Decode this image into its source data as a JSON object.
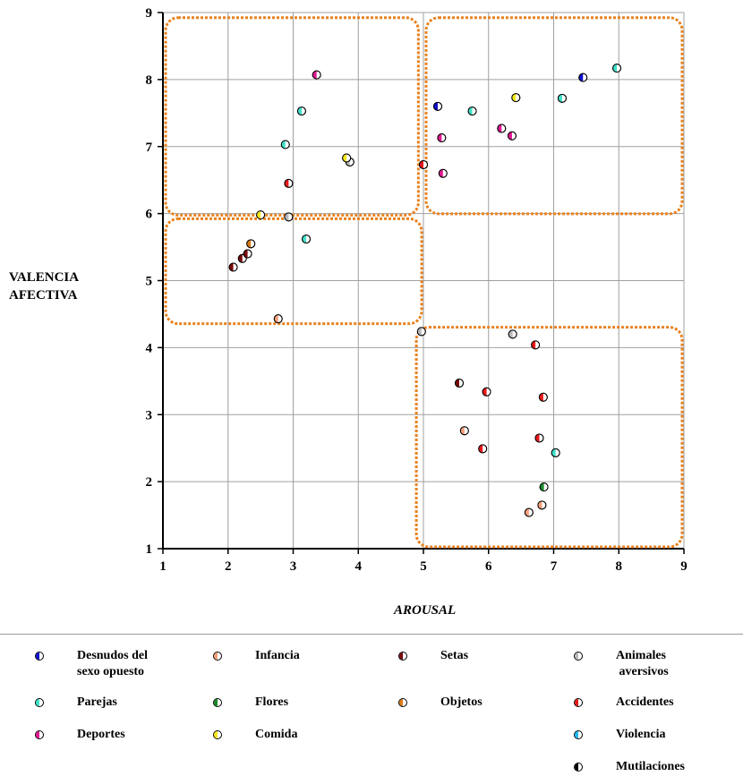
{
  "chart_data": {
    "type": "scatter",
    "xlabel": "AROUSAL",
    "ylabel_lines": [
      "VALENCIA",
      "AFECTIVA"
    ],
    "xlim": [
      1,
      9
    ],
    "ylim": [
      1,
      9
    ],
    "xticks": [
      1,
      2,
      3,
      4,
      5,
      6,
      7,
      8,
      9
    ],
    "yticks": [
      1,
      2,
      3,
      4,
      5,
      6,
      7,
      8,
      9
    ],
    "grid": true,
    "highlight_boxes": [
      {
        "x0": 1.0,
        "x1": 4.95,
        "y0": 5.95,
        "y1": 8.95
      },
      {
        "x0": 5.0,
        "x1": 9.0,
        "y0": 5.97,
        "y1": 8.95
      },
      {
        "x0": 1.0,
        "x1": 5.0,
        "y0": 4.33,
        "y1": 5.95
      },
      {
        "x0": 4.85,
        "x1": 9.0,
        "y0": 1.0,
        "y1": 4.33
      }
    ],
    "series": [
      {
        "name": "Desnudos del sexo opuesto",
        "color": "#1010cc",
        "points": [
          [
            5.22,
            7.6
          ],
          [
            7.45,
            8.03
          ]
        ]
      },
      {
        "name": "Infancia",
        "color": "#f4a07a",
        "points": [
          [
            5.63,
            2.76
          ],
          [
            6.62,
            1.54
          ],
          [
            6.82,
            1.65
          ],
          [
            2.77,
            4.43
          ]
        ]
      },
      {
        "name": "Setas",
        "color": "#7a0a0a",
        "points": [
          [
            2.08,
            5.2
          ],
          [
            2.22,
            5.33
          ],
          [
            2.3,
            5.4
          ],
          [
            5.55,
            3.47
          ]
        ]
      },
      {
        "name": "Animales aversivos",
        "color": "#b8b8b8",
        "points": [
          [
            4.97,
            4.24
          ],
          [
            6.37,
            4.2
          ],
          [
            2.93,
            5.95
          ],
          [
            3.87,
            6.77
          ]
        ]
      },
      {
        "name": "Parejas",
        "color": "#40e0c8",
        "points": [
          [
            3.13,
            7.53
          ],
          [
            2.88,
            7.03
          ],
          [
            3.2,
            5.62
          ],
          [
            5.75,
            7.53
          ],
          [
            7.13,
            7.72
          ],
          [
            7.97,
            8.17
          ],
          [
            7.03,
            2.43
          ]
        ]
      },
      {
        "name": "Flores",
        "color": "#1a8a2a",
        "points": [
          [
            6.85,
            1.92
          ]
        ]
      },
      {
        "name": "Objetos",
        "color": "#d97a1a",
        "points": [
          [
            2.35,
            5.55
          ]
        ]
      },
      {
        "name": "Accidentes",
        "color": "#e81818",
        "points": [
          [
            2.93,
            6.45
          ],
          [
            5.97,
            3.34
          ],
          [
            6.72,
            4.04
          ],
          [
            6.84,
            3.26
          ],
          [
            6.78,
            2.65
          ],
          [
            5.91,
            2.49
          ],
          [
            5.0,
            6.73
          ]
        ]
      },
      {
        "name": "Deportes",
        "color": "#e01890",
        "points": [
          [
            5.28,
            7.13
          ],
          [
            5.3,
            6.6
          ],
          [
            6.2,
            7.27
          ],
          [
            6.36,
            7.16
          ],
          [
            3.36,
            8.07
          ]
        ]
      },
      {
        "name": "Comida",
        "color": "#f4e818",
        "points": [
          [
            2.5,
            5.98
          ],
          [
            3.82,
            6.83
          ],
          [
            6.42,
            7.73
          ]
        ]
      },
      {
        "name": "Violencia",
        "color": "#20b8f0",
        "points": []
      },
      {
        "name": "Mutilaciones",
        "color": "#000000",
        "points": []
      }
    ]
  },
  "legend": {
    "items": [
      {
        "label_lines": [
          "Desnudos del",
          "sexo opuesto"
        ],
        "color": "#1010cc"
      },
      {
        "label_lines": [
          "Infancia"
        ],
        "color": "#f4a07a"
      },
      {
        "label_lines": [
          "Setas"
        ],
        "color": "#7a0a0a"
      },
      {
        "label_lines": [
          "Animales",
          " aversivos"
        ],
        "color": "#b8b8b8"
      },
      {
        "label_lines": [
          "Parejas"
        ],
        "color": "#40e0c8"
      },
      {
        "label_lines": [
          "Flores"
        ],
        "color": "#1a8a2a"
      },
      {
        "label_lines": [
          "Objetos"
        ],
        "color": "#d97a1a"
      },
      {
        "label_lines": [
          "Accidentes"
        ],
        "color": "#e81818"
      },
      {
        "label_lines": [
          "Deportes"
        ],
        "color": "#e01890"
      },
      {
        "label_lines": [
          "Comida"
        ],
        "color": "#f4e818"
      },
      {
        "label_lines": [
          "Violencia"
        ],
        "color": "#20b8f0"
      },
      {
        "label_lines": [
          "Mutilaciones"
        ],
        "color": "#000000"
      }
    ]
  },
  "colors": {
    "grid": "#a0a0a0",
    "box": "#e8821e",
    "axis": "#000000"
  }
}
